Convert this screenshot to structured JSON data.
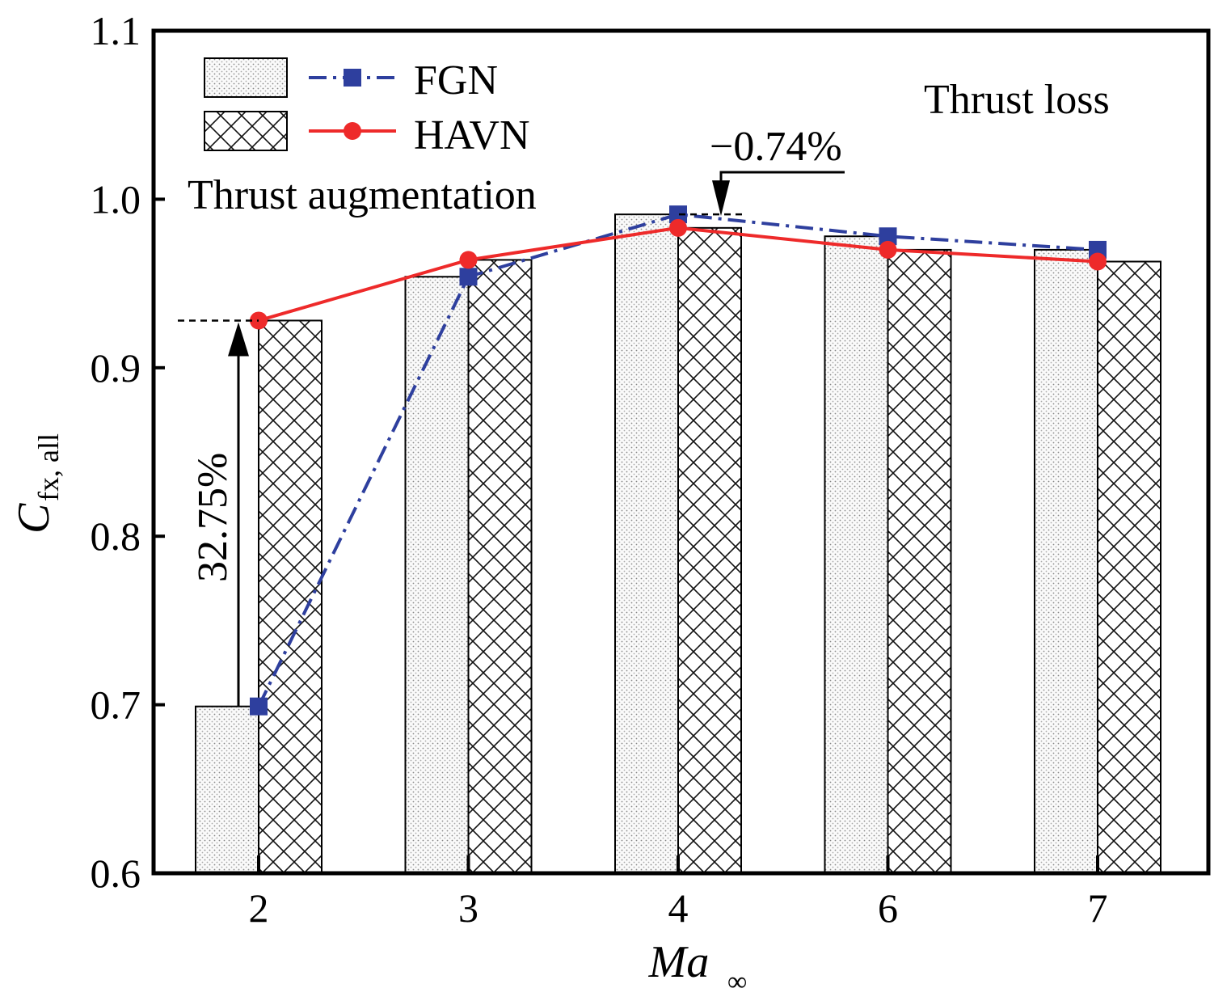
{
  "chart_data": {
    "type": "bar",
    "title": "",
    "xlabel": "Ma",
    "xlabel_sub": "∞",
    "ylabel": "C",
    "ylabel_sub": "fx, all",
    "categories": [
      "2",
      "3",
      "4",
      "6",
      "7"
    ],
    "ylim": [
      0.6,
      1.1
    ],
    "yticks": [
      "0.6",
      "0.7",
      "0.8",
      "0.9",
      "1.0",
      "1.1"
    ],
    "legend_position": "top-left",
    "series": [
      {
        "name": "FGN",
        "values": [
          0.699,
          0.954,
          0.991,
          0.978,
          0.97
        ],
        "bar_pattern": "dots",
        "line_color": "#2e3f9e",
        "line_style": "dash-dot",
        "marker": "square"
      },
      {
        "name": "HAVN",
        "values": [
          0.928,
          0.964,
          0.983,
          0.97,
          0.963
        ],
        "bar_pattern": "crosshatch",
        "line_color": "#ee2a2a",
        "line_style": "solid",
        "marker": "circle"
      }
    ],
    "annotations": {
      "thrust_loss": "Thrust loss",
      "thrust_augmentation": "Thrust augmentation",
      "loss_pct": "−0.74%",
      "gain_pct": "32.75%"
    }
  }
}
